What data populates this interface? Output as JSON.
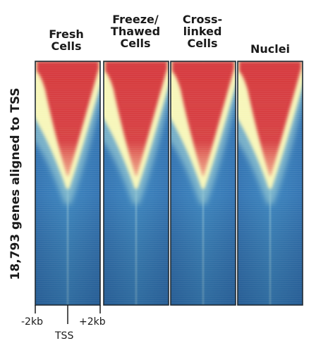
{
  "chart_data": {
    "type": "heatmap",
    "panels": [
      {
        "title": "Fresh\nCells"
      },
      {
        "title": "Freeze/\nThawed\nCells"
      },
      {
        "title": "Cross-\nlinked\nCells"
      },
      {
        "title": "Nuclei"
      }
    ],
    "ylabel": "18,793 genes aligned to TSS",
    "x_ticks": [
      "-2kb",
      "TSS",
      "+2kb"
    ],
    "x_range": [
      "-2kb",
      "+2kb"
    ],
    "colorscale": [
      "#2b6fb0",
      "#f7f6ba",
      "#d63a3f"
    ],
    "grid": false,
    "legend": "none"
  }
}
